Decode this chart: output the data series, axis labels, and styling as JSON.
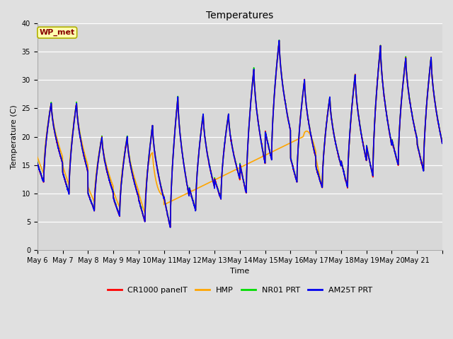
{
  "title": "Temperatures",
  "xlabel": "Time",
  "ylabel": "Temperature (C)",
  "ylim": [
    0,
    40
  ],
  "fig_bg": "#e0e0e0",
  "plot_bg": "#d8d8d8",
  "grid_color": "#ffffff",
  "annotation_text": "WP_met",
  "annotation_bg": "#ffffb0",
  "annotation_border": "#b0b000",
  "annotation_text_color": "#880000",
  "cr1000_color": "#ff0000",
  "hmp_color": "#ffa500",
  "nr01_color": "#00dd00",
  "am25t_color": "#0000ee",
  "line_lw": 1.2,
  "tick_fontsize": 7,
  "ytick_vals": [
    0,
    5,
    10,
    15,
    20,
    25,
    30,
    35,
    40
  ],
  "tick_labels": [
    "May 6",
    "May 7",
    "May 8",
    "May 9",
    "May 10",
    "May 11",
    "May 12",
    "May 13",
    "May 14",
    "May 15",
    "May 16",
    "May 17",
    "May 18",
    "May 19",
    "May 20",
    "May 21"
  ],
  "legend_labels": [
    "CR1000 panelT",
    "HMP",
    "NR01 PRT",
    "AM25T PRT"
  ],
  "legend_fontsize": 8,
  "title_fontsize": 10,
  "day_mins": [
    12,
    10,
    7,
    6,
    5,
    4,
    7,
    9,
    10,
    16,
    12,
    11,
    11,
    13,
    15,
    14
  ],
  "day_maxs": [
    26,
    26,
    20,
    20,
    22,
    27,
    24,
    24,
    32,
    37,
    30,
    27,
    31,
    36,
    34,
    34
  ]
}
